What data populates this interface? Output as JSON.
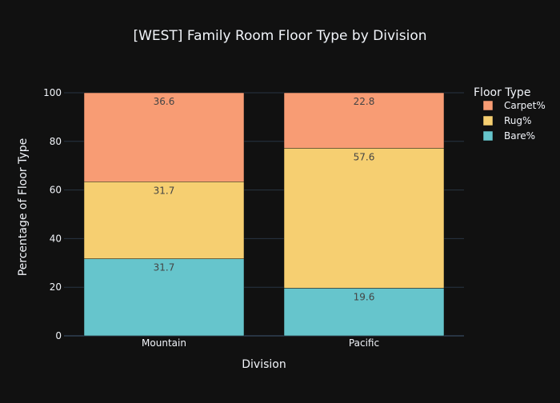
{
  "chart_data": {
    "type": "bar",
    "stacked": true,
    "title": "[WEST] Family Room Floor Type by Division",
    "xlabel": "Division",
    "ylabel": "Percentage of Floor Type",
    "categories": [
      "Mountain",
      "Pacific"
    ],
    "ylim": [
      0,
      100
    ],
    "yticks": [
      0,
      20,
      40,
      60,
      80,
      100
    ],
    "grid": true,
    "legend": {
      "title": "Floor Type",
      "position": "top-right"
    },
    "series": [
      {
        "name": "Bare%",
        "values": [
          31.7,
          19.6
        ],
        "color": "#66c5cc"
      },
      {
        "name": "Rug%",
        "values": [
          31.7,
          57.6
        ],
        "color": "#f6cf71"
      },
      {
        "name": "Carpet%",
        "values": [
          36.6,
          22.8
        ],
        "color": "#f89c74"
      }
    ],
    "legend_order": [
      "Carpet%",
      "Rug%",
      "Bare%"
    ],
    "data_labels": true
  },
  "colors": {
    "background": "#111111",
    "text": "#f2f5fa",
    "grid": "#283442",
    "bar_outline": "#111111",
    "data_label": "#444444"
  }
}
